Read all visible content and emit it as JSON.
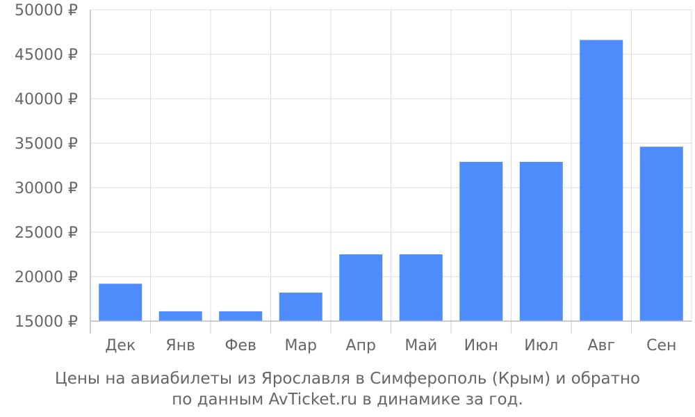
{
  "chart_data": {
    "type": "bar",
    "categories": [
      "Дек",
      "Янв",
      "Фев",
      "Мар",
      "Апр",
      "Май",
      "Июн",
      "Июл",
      "Авг",
      "Сен"
    ],
    "values": [
      19200,
      16100,
      16100,
      18200,
      22500,
      22500,
      32900,
      32900,
      46600,
      34600
    ],
    "yticks": [
      "15000 ₽",
      "20000 ₽",
      "25000 ₽",
      "30000 ₽",
      "35000 ₽",
      "40000 ₽",
      "45000 ₽",
      "50000 ₽"
    ],
    "ylim": [
      15000,
      50000
    ],
    "y_unit": "₽",
    "grid": true,
    "bar_color": "#4e8cfb",
    "caption_line1": "Цены на авиабилеты из Ярославля в Симферополь (Крым) и обратно",
    "caption_line2": "по данным AvTicket.ru в динамике за год."
  }
}
